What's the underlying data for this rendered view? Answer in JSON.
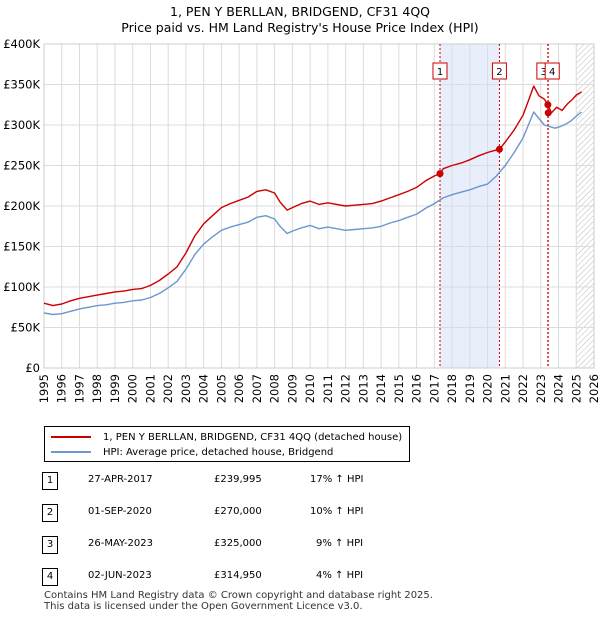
{
  "header": {
    "title_line1": "1, PEN Y BERLLAN, BRIDGEND, CF31 4QQ",
    "title_line2": "Price paid vs. HM Land Registry's House Price Index (HPI)"
  },
  "legend": {
    "items": [
      {
        "label": "1, PEN Y BERLLAN, BRIDGEND, CF31 4QQ (detached house)",
        "color": "#cc0000"
      },
      {
        "label": "HPI: Average price, detached house, Bridgend",
        "color": "#6c96cf"
      }
    ]
  },
  "sales": [
    {
      "num": "1",
      "date": "27-APR-2017",
      "price": "£239,995",
      "hpi": "17% ↑ HPI"
    },
    {
      "num": "2",
      "date": "01-SEP-2020",
      "price": "£270,000",
      "hpi": "10% ↑ HPI"
    },
    {
      "num": "3",
      "date": "26-MAY-2023",
      "price": "£325,000",
      "hpi": "9% ↑ HPI"
    },
    {
      "num": "4",
      "date": "02-JUN-2023",
      "price": "£314,950",
      "hpi": "4% ↑ HPI"
    }
  ],
  "footer": {
    "line1": "Contains HM Land Registry data © Crown copyright and database right 2025.",
    "line2": "This data is licensed under the Open Government Licence v3.0."
  },
  "chart_data": {
    "type": "line",
    "title": "1, PEN Y BERLLAN, BRIDGEND, CF31 4QQ — Price paid vs. HM Land Registry's House Price Index (HPI)",
    "xlabel": "",
    "ylabel": "",
    "xlim": [
      1995,
      2026
    ],
    "ylim": [
      0,
      400000
    ],
    "grid": true,
    "x_ticks": [
      "1995",
      "1996",
      "1997",
      "1998",
      "1999",
      "2000",
      "2001",
      "2002",
      "2003",
      "2004",
      "2005",
      "2006",
      "2007",
      "2008",
      "2009",
      "2010",
      "2011",
      "2012",
      "2013",
      "2014",
      "2015",
      "2016",
      "2017",
      "2018",
      "2019",
      "2020",
      "2021",
      "2022",
      "2023",
      "2024",
      "2025",
      "2026"
    ],
    "y_ticks": [
      {
        "value": 0,
        "label": "£0"
      },
      {
        "value": 50000,
        "label": "£50K"
      },
      {
        "value": 100000,
        "label": "£100K"
      },
      {
        "value": 150000,
        "label": "£150K"
      },
      {
        "value": 200000,
        "label": "£200K"
      },
      {
        "value": 250000,
        "label": "£250K"
      },
      {
        "value": 300000,
        "label": "£300K"
      },
      {
        "value": 350000,
        "label": "£350K"
      },
      {
        "value": 400000,
        "label": "£400K"
      }
    ],
    "series": [
      {
        "name": "1, PEN Y BERLLAN, BRIDGEND, CF31 4QQ (detached house)",
        "color": "#cc0000",
        "x": [
          1995,
          1995.5,
          1996,
          1996.5,
          1997,
          1997.5,
          1998,
          1998.5,
          1999,
          1999.5,
          2000,
          2000.5,
          2001,
          2001.5,
          2002,
          2002.5,
          2003,
          2003.5,
          2004,
          2004.5,
          2005,
          2005.5,
          2006,
          2006.5,
          2007,
          2007.5,
          2008,
          2008.3,
          2008.7,
          2009,
          2009.5,
          2010,
          2010.5,
          2011,
          2011.5,
          2012,
          2012.5,
          2013,
          2013.5,
          2014,
          2014.5,
          2015,
          2015.5,
          2016,
          2016.5,
          2017,
          2017.32,
          2017.5,
          2018,
          2018.5,
          2019,
          2019.5,
          2020,
          2020.3,
          2020.67,
          2021,
          2021.5,
          2022,
          2022.3,
          2022.6,
          2022.9,
          2023.2,
          2023.4,
          2023.6,
          2023.9,
          2024.2,
          2024.5,
          2024.8,
          2025.0,
          2025.3
        ],
        "values": [
          80000,
          77000,
          79000,
          83000,
          86000,
          88000,
          90000,
          92000,
          94000,
          95000,
          97000,
          98000,
          102000,
          108000,
          116000,
          125000,
          142000,
          163000,
          178000,
          188000,
          198000,
          203000,
          207000,
          211000,
          218000,
          220000,
          216000,
          205000,
          195000,
          198000,
          203000,
          206000,
          202000,
          204000,
          202000,
          200000,
          201000,
          202000,
          203000,
          206000,
          210000,
          214000,
          218000,
          223000,
          231000,
          237000,
          239995,
          246000,
          250000,
          253000,
          257000,
          262000,
          266000,
          268000,
          270000,
          279000,
          294000,
          312000,
          330000,
          348000,
          336000,
          332000,
          325000,
          314950,
          322000,
          318000,
          326000,
          332000,
          337000,
          341000
        ]
      },
      {
        "name": "HPI: Average price, detached house, Bridgend",
        "color": "#6c96cf",
        "x": [
          1995,
          1995.5,
          1996,
          1996.5,
          1997,
          1997.5,
          1998,
          1998.5,
          1999,
          1999.5,
          2000,
          2000.5,
          2001,
          2001.5,
          2002,
          2002.5,
          2003,
          2003.5,
          2004,
          2004.5,
          2005,
          2005.5,
          2006,
          2006.5,
          2007,
          2007.5,
          2008,
          2008.3,
          2008.7,
          2009,
          2009.5,
          2010,
          2010.5,
          2011,
          2011.5,
          2012,
          2012.5,
          2013,
          2013.5,
          2014,
          2014.5,
          2015,
          2015.5,
          2016,
          2016.5,
          2017,
          2017.5,
          2018,
          2018.5,
          2019,
          2019.5,
          2020,
          2020.5,
          2021,
          2021.5,
          2022,
          2022.3,
          2022.6,
          2022.9,
          2023.2,
          2023.5,
          2023.8,
          2024.1,
          2024.4,
          2024.7,
          2025.0,
          2025.3
        ],
        "values": [
          68000,
          66000,
          67000,
          70000,
          73000,
          75000,
          77000,
          78000,
          80000,
          81000,
          83000,
          84000,
          87000,
          92000,
          99000,
          107000,
          122000,
          140000,
          153000,
          162000,
          170000,
          174000,
          177000,
          180000,
          186000,
          188000,
          184000,
          175000,
          166000,
          169000,
          173000,
          176000,
          172000,
          174000,
          172000,
          170000,
          171000,
          172000,
          173000,
          175000,
          179000,
          182000,
          186000,
          190000,
          197000,
          203000,
          210000,
          214000,
          217000,
          220000,
          224000,
          227000,
          237000,
          250000,
          266000,
          284000,
          300000,
          316000,
          308000,
          300000,
          298000,
          296000,
          298000,
          301000,
          305000,
          311000,
          316000
        ]
      }
    ],
    "sale_markers": [
      {
        "label": "1",
        "x": 2017.32,
        "value": 239995
      },
      {
        "label": "2",
        "x": 2020.67,
        "value": 270000
      },
      {
        "label": "3",
        "x": 2023.4,
        "value": 325000
      },
      {
        "label": "4",
        "x": 2023.42,
        "value": 314950
      }
    ],
    "highlight_band": {
      "from": 2017.32,
      "to": 2020.67
    },
    "forecast_from": 2025.0
  }
}
